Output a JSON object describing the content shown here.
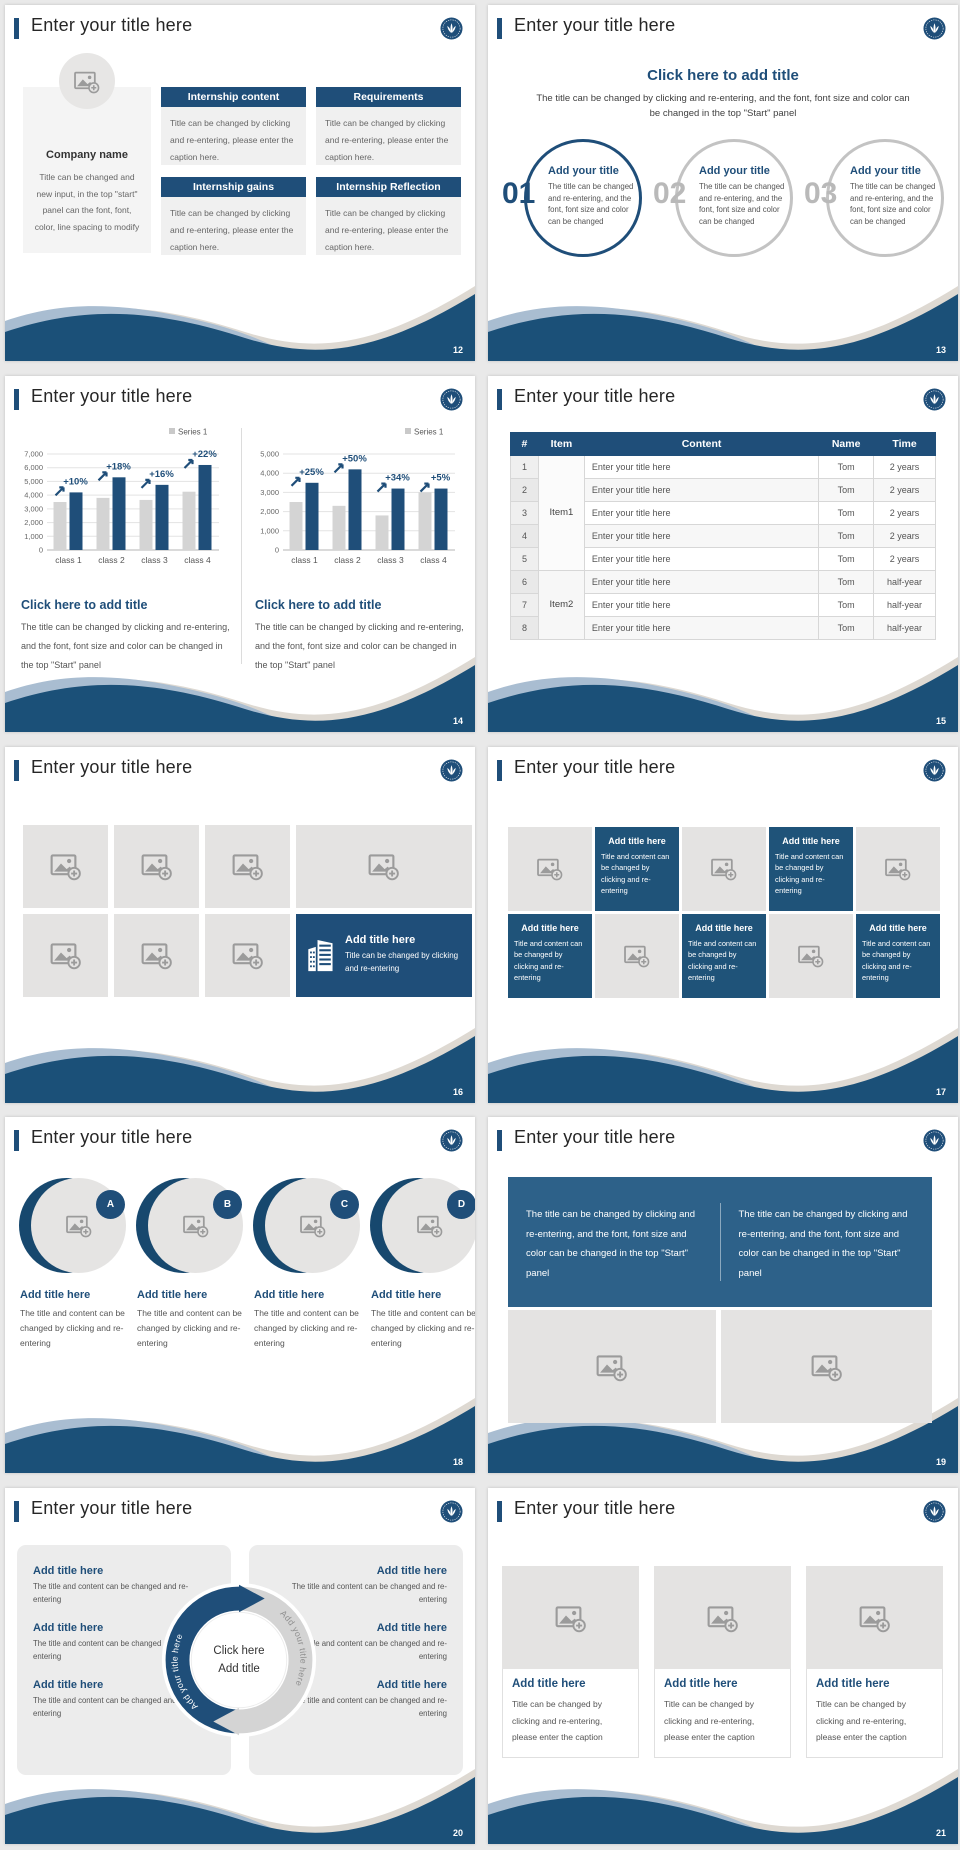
{
  "canvas_bg": "#e9e9e9",
  "accent_color": "#1f4e79",
  "footer_blue": "#1b5078",
  "common": {
    "slide_title": "Enter your title here"
  },
  "chart_data": [
    {
      "type": "bar",
      "legend": "Series 1",
      "categories": [
        "class 1",
        "class 2",
        "class 3",
        "class 4"
      ],
      "series": [
        {
          "name": "Series 1",
          "values": [
            3500,
            3800,
            3650,
            4250
          ]
        },
        {
          "name": "",
          "values": [
            4200,
            5300,
            4750,
            6200
          ]
        }
      ],
      "growth_labels": [
        "+10%",
        "+18%",
        "+16%",
        "+22%"
      ],
      "ylim": [
        0,
        7000
      ],
      "ytick_step": 1000,
      "grid": true,
      "legend_position": "top-right"
    },
    {
      "type": "bar",
      "legend": "Series 1",
      "categories": [
        "class 1",
        "class 2",
        "class 3",
        "class 4"
      ],
      "series": [
        {
          "name": "Series 1",
          "values": [
            2500,
            2300,
            1800,
            3000
          ]
        },
        {
          "name": "",
          "values": [
            3500,
            4200,
            3200,
            3200
          ]
        }
      ],
      "growth_labels": [
        "+25%",
        "+50%",
        "+34%",
        "+5%"
      ],
      "ylim": [
        0,
        5000
      ],
      "ytick_step": 1000,
      "grid": true,
      "legend_position": "top-right"
    }
  ],
  "slides": {
    "s12": {
      "page": "12",
      "company": {
        "name": "Company name",
        "body": "Title can be changed and new input, in the top \"start\" panel can the font, font, color, line spacing to modify"
      },
      "boxes": [
        {
          "title": "Internship content",
          "body": "Title can be changed by clicking and re-entering, please enter the caption here."
        },
        {
          "title": "Requirements",
          "body": "Title can be changed by clicking and re-entering, please enter the caption here."
        },
        {
          "title": "Internship gains",
          "body": "Title can be changed by clicking and re-entering, please enter the caption here."
        },
        {
          "title": "Internship Reflection",
          "body": "Title can be changed by clicking and re-entering, please enter the caption here."
        }
      ]
    },
    "s13": {
      "page": "13",
      "title": "Click here to add title",
      "subtitle": "The title can be changed by clicking and re-entering, and the font, font size and color can be changed in the top \"Start\" panel",
      "steps": [
        {
          "num": "01",
          "title": "Add your title",
          "body": "The title can be changed and re-entering, and the font, font size and color can be changed"
        },
        {
          "num": "02",
          "title": "Add your title",
          "body": "The title can be changed and re-entering, and the font, font size and color can be changed"
        },
        {
          "num": "03",
          "title": "Add your title",
          "body": "The title can be changed and re-entering, and the font, font size and color can be changed"
        }
      ]
    },
    "s14": {
      "page": "14",
      "captions": [
        {
          "title": "Click here to add title",
          "body": "The title can be changed by clicking and re-entering, and the font, font size and color can be changed in the top \"Start\" panel"
        },
        {
          "title": "Click here to add title",
          "body": "The title can be changed by clicking and re-entering, and the font, font size and color can be changed in the top \"Start\" panel"
        }
      ]
    },
    "s15": {
      "page": "15",
      "table": {
        "headers": [
          "#",
          "Item",
          "Content",
          "Name",
          "Time"
        ],
        "groups": [
          {
            "item": "Item1",
            "rows": [
              {
                "num": "1",
                "content": "Enter your title here",
                "name": "Tom",
                "time": "2 years"
              },
              {
                "num": "2",
                "content": "Enter your title here",
                "name": "Tom",
                "time": "2 years"
              },
              {
                "num": "3",
                "content": "Enter your title here",
                "name": "Tom",
                "time": "2 years"
              },
              {
                "num": "4",
                "content": "Enter your title here",
                "name": "Tom",
                "time": "2 years"
              },
              {
                "num": "5",
                "content": "Enter your title here",
                "name": "Tom",
                "time": "2 years"
              }
            ]
          },
          {
            "item": "Item2",
            "rows": [
              {
                "num": "6",
                "content": "Enter your title here",
                "name": "Tom",
                "time": "half-year"
              },
              {
                "num": "7",
                "content": "Enter your title here",
                "name": "Tom",
                "time": "half-year"
              },
              {
                "num": "8",
                "content": "Enter your title here",
                "name": "Tom",
                "time": "half-year"
              }
            ]
          }
        ]
      }
    },
    "s16": {
      "page": "16",
      "card": {
        "title": "Add title here",
        "body": "Title can be changed by clicking and re-entering"
      }
    },
    "s17": {
      "page": "17",
      "tile": {
        "title": "Add title here",
        "body": "Title and content can be changed by clicking and re-entering"
      }
    },
    "s18": {
      "page": "18",
      "items": [
        {
          "letter": "A",
          "title": "Add title here",
          "body": "The title and content can be changed by clicking and re-entering"
        },
        {
          "letter": "B",
          "title": "Add title here",
          "body": "The title and content can be changed by clicking and re-entering"
        },
        {
          "letter": "C",
          "title": "Add title here",
          "body": "The title and content can be changed by clicking and re-entering"
        },
        {
          "letter": "D",
          "title": "Add title here",
          "body": "The title and content can be changed by clicking and re-entering"
        }
      ]
    },
    "s19": {
      "page": "19",
      "columns": [
        "The title can be changed by clicking and re-entering, and the font, font size and color can be changed in the top \"Start\" panel",
        "The title can be changed by clicking and re-entering, and the font, font size and color can be changed in the top \"Start\" panel"
      ]
    },
    "s20": {
      "page": "20",
      "ring_label": "Add your title here",
      "center": {
        "line1": "Click here",
        "line2": "Add title"
      },
      "left": [
        {
          "title": "Add title here",
          "body": "The title and content can be changed and re-entering"
        },
        {
          "title": "Add title here",
          "body": "The title and content can be changed and re-entering"
        },
        {
          "title": "Add title here",
          "body": "The title and content can be changed and re-entering"
        }
      ],
      "right": [
        {
          "title": "Add title here",
          "body": "The title and content can be changed and re-entering"
        },
        {
          "title": "Add title here",
          "body": "The title and content can be changed and re-entering"
        },
        {
          "title": "Add title here",
          "body": "The title and content can be changed and re-entering"
        }
      ]
    },
    "s21": {
      "page": "21",
      "cards": [
        {
          "title": "Add title here",
          "body": "Title can be changed by clicking and re-entering, please enter the caption"
        },
        {
          "title": "Add title here",
          "body": "Title can be changed by clicking and re-entering, please enter the caption"
        },
        {
          "title": "Add title here",
          "body": "Title can be changed by clicking and re-entering, please enter the caption"
        }
      ]
    }
  }
}
